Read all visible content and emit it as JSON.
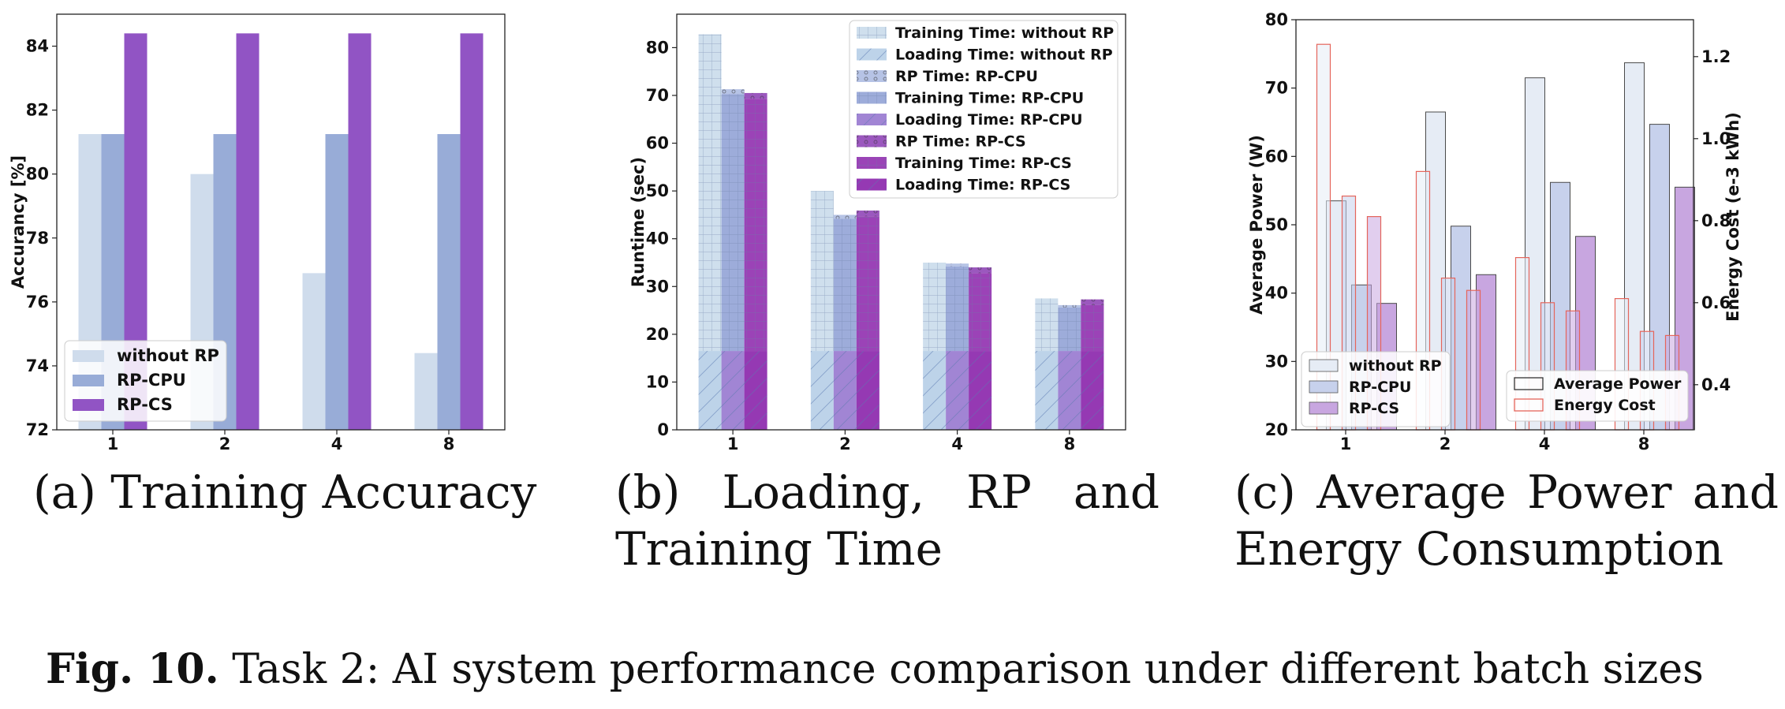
{
  "caption": {
    "label": "Fig. 10.",
    "text": "Task 2: AI system performance comparison under different batch sizes"
  },
  "subcaptions": {
    "a": "(a) Training Accuracy",
    "b": "(b) Loading, RP and Training Time",
    "c": "(c) Average Power and Energy Consumption"
  },
  "colors": {
    "without_rp": "#cfdcec",
    "rp_cpu": "#98acd7",
    "rp_cs": "#9154c4",
    "training_without_rp": "#c7d9ea",
    "loading_without_rp": "#b1cbe5",
    "rp_time_cpu": "#a9b9e0",
    "training_cpu": "#8c9dd3",
    "loading_cpu": "#9170cc",
    "rp_time_cs": "#8a3bb3",
    "training_cs": "#8a22aa",
    "loading_cs": "#8316a6",
    "power_without_rp": "#e6ecf5",
    "power_cpu": "#c7d1ec",
    "power_cs": "#c8a6e0",
    "energy_edge": "#e5655b"
  },
  "chart_data": [
    {
      "id": "a",
      "type": "bar",
      "categories": [
        "1",
        "2",
        "4",
        "8"
      ],
      "ylabel": "Accurancy [%]",
      "ylim": [
        72,
        85
      ],
      "yticks": [
        72,
        74,
        76,
        78,
        80,
        82,
        84
      ],
      "legend_position": "lower-left",
      "series": [
        {
          "name": "without RP",
          "values": [
            81.25,
            80.0,
            76.9,
            74.4
          ]
        },
        {
          "name": "RP-CPU",
          "values": [
            81.25,
            81.25,
            81.25,
            81.25
          ]
        },
        {
          "name": "RP-CS",
          "values": [
            84.4,
            84.4,
            84.4,
            84.4
          ]
        }
      ]
    },
    {
      "id": "b",
      "type": "bar",
      "stacked": true,
      "categories": [
        "1",
        "2",
        "4",
        "8"
      ],
      "ylabel": "Runtime (sec)",
      "ylim": [
        0,
        87
      ],
      "yticks": [
        0,
        10,
        20,
        30,
        40,
        50,
        60,
        70,
        80
      ],
      "legend_position": "top-right",
      "groups": [
        {
          "name": "without RP",
          "loading": {
            "name": "Loading Time: without RP",
            "values": [
              16.5,
              16.5,
              16.5,
              16.5
            ]
          },
          "rp": {
            "name": "",
            "values": [
              0,
              0,
              0,
              0
            ]
          },
          "training": {
            "name": "Training Time: without RP",
            "values": [
              66.3,
              33.5,
              18.5,
              11.0
            ]
          }
        },
        {
          "name": "RP-CPU",
          "loading": {
            "name": "Loading Time: RP-CPU",
            "values": [
              16.5,
              16.5,
              16.5,
              16.5
            ]
          },
          "rp": {
            "name": "RP Time: RP-CPU",
            "values": [
              1.0,
              0.8,
              0.6,
              0.5
            ]
          },
          "training": {
            "name": "Training Time: RP-CPU",
            "values": [
              53.8,
              27.7,
              17.7,
              9.1
            ]
          }
        },
        {
          "name": "RP-CS",
          "loading": {
            "name": "Loading Time: RP-CS",
            "values": [
              16.5,
              16.5,
              16.5,
              16.5
            ]
          },
          "rp": {
            "name": "RP Time: RP-CS",
            "values": [
              1.2,
              1.2,
              1.2,
              1.2
            ]
          },
          "training": {
            "name": "Training Time: RP-CS",
            "values": [
              52.8,
              28.2,
              16.3,
              9.6
            ]
          }
        }
      ],
      "legend_order": [
        "Training Time: without RP",
        "Loading Time: without RP",
        "RP Time: RP-CPU",
        "Training Time: RP-CPU",
        "Loading Time: RP-CPU",
        "RP Time: RP-CS",
        "Training Time: RP-CS",
        "Loading Time: RP-CS"
      ]
    },
    {
      "id": "c",
      "type": "bar",
      "categories": [
        "1",
        "2",
        "4",
        "8"
      ],
      "ylabel": "Average Power (W)",
      "ylim": [
        20,
        80
      ],
      "yticks": [
        20,
        30,
        40,
        50,
        60,
        70,
        80
      ],
      "y2label": "Energy Cost (e-3 kWh)",
      "y2lim": [
        0.29,
        1.29
      ],
      "y2ticks": [
        0.4,
        0.6,
        0.8,
        1.0,
        1.2
      ],
      "legend_position": "lower-left and lower-right",
      "power_series": [
        {
          "name": "without RP",
          "values": [
            53.5,
            66.5,
            71.5,
            73.7
          ]
        },
        {
          "name": "RP-CPU",
          "values": [
            41.2,
            49.8,
            56.2,
            64.7
          ]
        },
        {
          "name": "RP-CS",
          "values": [
            38.5,
            42.7,
            48.3,
            55.5
          ]
        }
      ],
      "energy_series": [
        {
          "name": "without RP",
          "values": [
            1.23,
            0.92,
            0.71,
            0.61
          ]
        },
        {
          "name": "RP-CPU",
          "values": [
            0.86,
            0.66,
            0.6,
            0.53
          ]
        },
        {
          "name": "RP-CS",
          "values": [
            0.81,
            0.63,
            0.58,
            0.52
          ]
        }
      ],
      "legend_types": [
        "Average Power",
        "Energy Cost"
      ]
    }
  ]
}
